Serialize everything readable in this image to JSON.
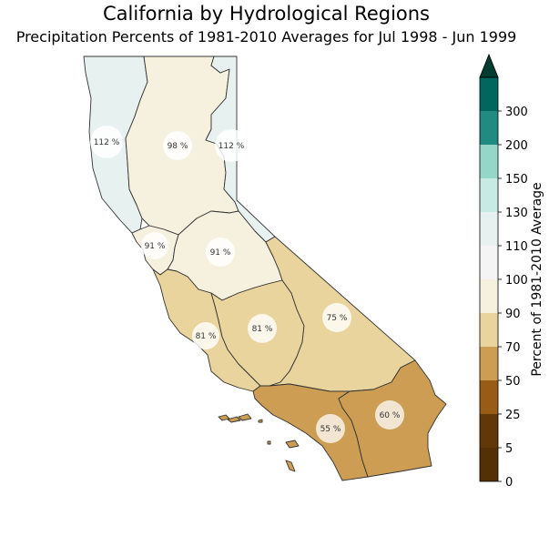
{
  "title": "California by Hydrological Regions",
  "subtitle": "Precipitation Percents of 1981-2010 Averages for Jul 1998 - Jun 1999",
  "regions": [
    {
      "id": "north-coast",
      "label": "112 %",
      "value": 112,
      "color": "#e7f1f0"
    },
    {
      "id": "sacramento-river",
      "label": "98 %",
      "value": 98,
      "color": "#f6f0df"
    },
    {
      "id": "north-lahontan",
      "label": "112 %",
      "value": 112,
      "color": "#e7f1f0"
    },
    {
      "id": "san-francisco-bay",
      "label": "91 %",
      "value": 91,
      "color": "#f6f0df"
    },
    {
      "id": "san-joaquin-river",
      "label": "91 %",
      "value": 91,
      "color": "#f6f0df"
    },
    {
      "id": "central-coast",
      "label": "81 %",
      "value": 81,
      "color": "#ead49d"
    },
    {
      "id": "tulare-lake",
      "label": "81 %",
      "value": 81,
      "color": "#ead49d"
    },
    {
      "id": "south-lahontan",
      "label": "75 %",
      "value": 75,
      "color": "#ead49d"
    },
    {
      "id": "south-coast",
      "label": "55 %",
      "value": 55,
      "color": "#cc9d52"
    },
    {
      "id": "colorado-river",
      "label": "60 %",
      "value": 60,
      "color": "#cc9d52"
    }
  ],
  "colorbar": {
    "label": "Percent of 1981-2010 Average",
    "ticks": [
      "0",
      "5",
      "25",
      "50",
      "70",
      "90",
      "100",
      "110",
      "130",
      "150",
      "200",
      "300"
    ],
    "colors": [
      "#543005",
      "#633808",
      "#995c16",
      "#cc9d52",
      "#ead49d",
      "#f6f0df",
      "#f4f4f4",
      "#e7f1f0",
      "#c7eae5",
      "#94d6c8",
      "#218b81",
      "#01665e",
      "#003c30"
    ]
  }
}
